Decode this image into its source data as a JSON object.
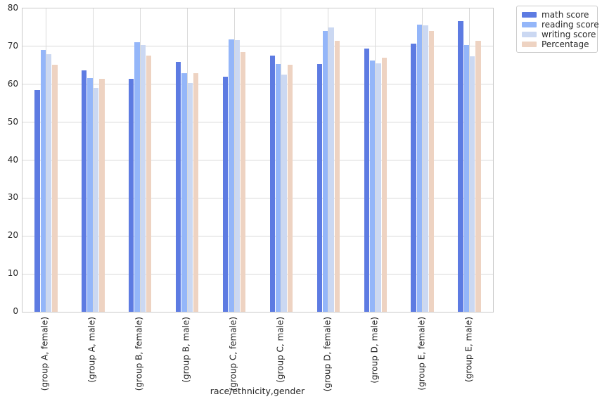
{
  "chart_data": {
    "type": "bar",
    "title": "",
    "xlabel": "race/ethnicity,gender",
    "ylabel": "",
    "ylim": [
      0,
      80
    ],
    "yticks": [
      0,
      10,
      20,
      30,
      40,
      50,
      60,
      70,
      80
    ],
    "grid": "both",
    "legend_position": "outside-upper-right",
    "categories": [
      "(group A, female)",
      "(group A, male)",
      "(group B, female)",
      "(group B, male)",
      "(group C, female)",
      "(group C, male)",
      "(group D, female)",
      "(group D, male)",
      "(group E, female)",
      "(group E, male)"
    ],
    "series": [
      {
        "name": "math score",
        "color": "#5d7be2",
        "values": [
          58.5,
          63.7,
          61.4,
          65.9,
          62.0,
          67.6,
          65.3,
          69.4,
          70.8,
          76.7
        ]
      },
      {
        "name": "reading score",
        "color": "#94b6f9",
        "values": [
          69.0,
          61.7,
          71.1,
          62.9,
          71.9,
          65.4,
          74.0,
          66.2,
          75.8,
          70.3
        ]
      },
      {
        "name": "writing score",
        "color": "#cbd8f2",
        "values": [
          67.9,
          59.1,
          70.4,
          60.3,
          71.6,
          62.6,
          75.0,
          65.5,
          75.5,
          67.4
        ]
      },
      {
        "name": "Percentage",
        "color": "#eed3c2",
        "values": [
          65.1,
          61.5,
          67.6,
          63.0,
          68.5,
          65.2,
          71.4,
          67.0,
          74.0,
          71.4
        ]
      }
    ],
    "colors": {
      "grid": "#d9d9d9",
      "spine": "#c9c9c9",
      "text": "#262626",
      "background": "#ffffff"
    }
  }
}
